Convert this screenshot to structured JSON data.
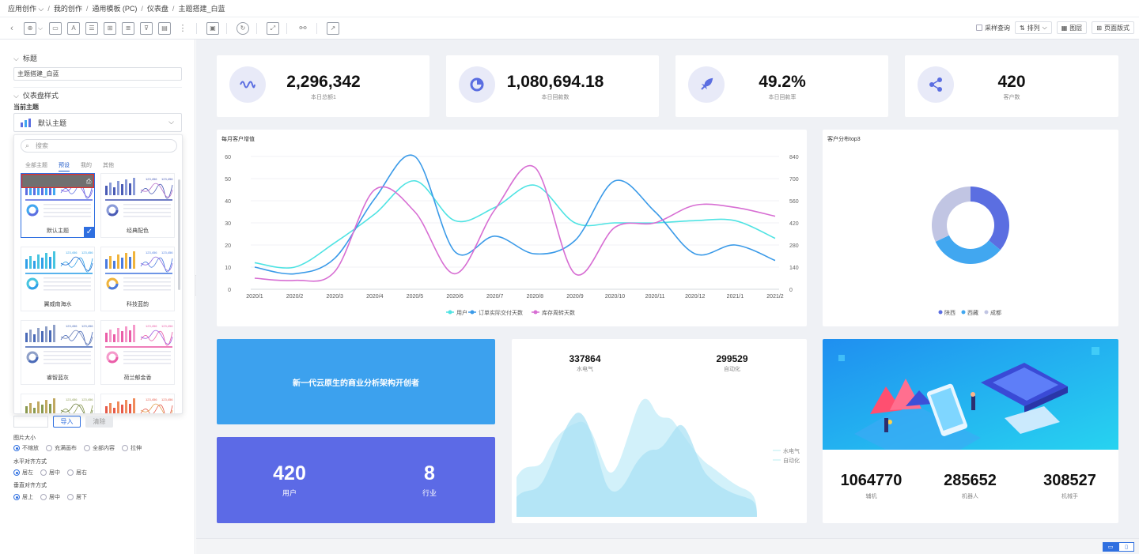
{
  "breadcrumb": [
    "应用创作",
    "我的创作",
    "通用模板 (PC)",
    "仪表盘",
    "主题搭建_白蓝"
  ],
  "toolbar": {
    "sample_query": "采样查询",
    "arrange": "排列",
    "layers": "图层",
    "page_style": "页面版式"
  },
  "sidebar": {
    "title_section": "标题",
    "title_value": "主题搭建_白蓝",
    "dashboard_style": "仪表盘样式",
    "current_theme_label": "当前主题",
    "current_theme": "默认主题",
    "search_placeholder": "搜索",
    "tabs": [
      "全部主题",
      "预设",
      "我的",
      "其他"
    ],
    "themes": [
      {
        "name": "默认主题",
        "selected": true
      },
      {
        "name": "经典配色"
      },
      {
        "name": "翼威南海水"
      },
      {
        "name": "科技蓝韵"
      },
      {
        "name": "睿智蓝灰"
      },
      {
        "name": "荷兰郁金香"
      },
      {
        "name": ""
      },
      {
        "name": ""
      }
    ],
    "thumb_number": "123,456",
    "import_btn": "导入",
    "clear_btn": "清除",
    "image_size_label": "图片大小",
    "image_size_opts": [
      "不缩放",
      "充满画布",
      "全部内容",
      "拉伸"
    ],
    "h_align_label": "水平对齐方式",
    "h_align_opts": [
      "居左",
      "居中",
      "居右"
    ],
    "v_align_label": "垂直对齐方式",
    "v_align_opts": [
      "居上",
      "居中",
      "居下"
    ]
  },
  "kpis": [
    {
      "value": "2,296,342",
      "label": "本日总额1",
      "icon": "waveform-icon"
    },
    {
      "value": "1,080,694.18",
      "label": "本日回款数",
      "icon": "pie-icon"
    },
    {
      "value": "49.2%",
      "label": "本日回款率",
      "icon": "rocket-icon"
    },
    {
      "value": "420",
      "label": "客户数",
      "icon": "share-icon"
    }
  ],
  "line_chart": {
    "title": "每月客户增值",
    "chart_data": {
      "type": "line",
      "categories": [
        "2020/1",
        "2020/2",
        "2020/3",
        "2020/4",
        "2020/5",
        "2020/6",
        "2020/7",
        "2020/8",
        "2020/9",
        "2020/10",
        "2020/11",
        "2020/12",
        "2021/1",
        "2021/2"
      ],
      "left_ticks": [
        "60",
        "50",
        "40",
        "30",
        "20",
        "10",
        "0"
      ],
      "right_ticks": [
        "840",
        "700",
        "560",
        "420",
        "280",
        "140",
        "0"
      ],
      "ylim_left": [
        0,
        60
      ],
      "ylim_right": [
        0,
        840
      ],
      "series": [
        {
          "name": "用户",
          "color": "#4fe3e3",
          "axis": "left",
          "values": [
            12,
            10,
            21,
            34,
            49,
            31,
            37,
            47,
            30,
            30,
            30,
            31,
            31,
            23
          ]
        },
        {
          "name": "订单实际交付天数",
          "color": "#3a9ae8",
          "axis": "left",
          "values": [
            10,
            7,
            14,
            41,
            60,
            17,
            24,
            16,
            22,
            49,
            35,
            16,
            20,
            13
          ]
        },
        {
          "name": "库存周转天数",
          "color": "#d76ed3",
          "axis": "left",
          "values": [
            5,
            4,
            8,
            45,
            35,
            7,
            36,
            55,
            7,
            28,
            30,
            38,
            37,
            33
          ]
        }
      ]
    }
  },
  "donut_chart": {
    "title": "客户分布top3",
    "chart_data": {
      "type": "pie",
      "categories": [
        "陕西",
        "西藏",
        "成都"
      ],
      "values": [
        36,
        32,
        32
      ],
      "colors": [
        "#5b6ee1",
        "#41a7f0",
        "#c1c5e3"
      ]
    }
  },
  "banner": {
    "text": "新一代云原生的商业分析架构开创者",
    "color": "#3ca1ee"
  },
  "stats_card": [
    {
      "value": "420",
      "label": "用户"
    },
    {
      "value": "8",
      "label": "行业"
    }
  ],
  "area_card": {
    "metrics": [
      {
        "value": "337864",
        "label": "水电气"
      },
      {
        "value": "299529",
        "label": "自动化"
      }
    ],
    "legend": [
      "水电气",
      "自动化"
    ]
  },
  "image_card": {
    "metrics": [
      {
        "value": "1064770",
        "label": "辅机"
      },
      {
        "value": "285652",
        "label": "机器人"
      },
      {
        "value": "308527",
        "label": "机械手"
      }
    ]
  }
}
